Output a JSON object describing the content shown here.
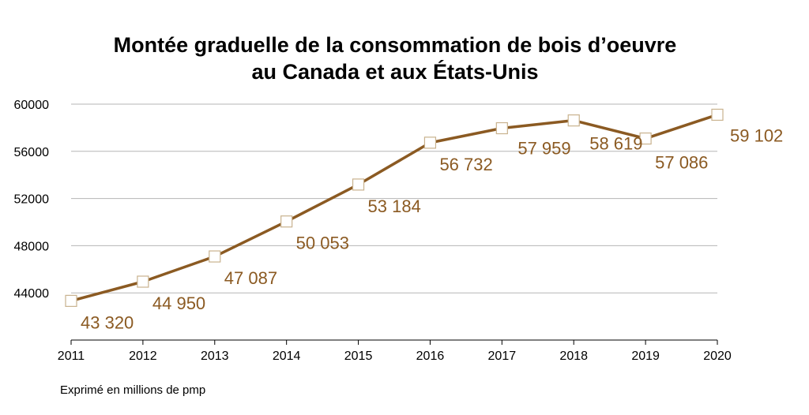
{
  "chart_data": {
    "type": "line",
    "title_line1": "Montée graduelle de la consommation de bois d’oeuvre",
    "title_line2": "au Canada et aux États-Unis",
    "footnote": "Exprimé en millions de pmp",
    "categories": [
      "2011",
      "2012",
      "2013",
      "2014",
      "2015",
      "2016",
      "2017",
      "2018",
      "2019",
      "2020"
    ],
    "values": [
      43320,
      44950,
      47087,
      50053,
      53184,
      56732,
      57959,
      58619,
      57086,
      59102
    ],
    "data_labels": [
      "43 320",
      "44 950",
      "47 087",
      "50 053",
      "53 184",
      "56 732",
      "57 959",
      "58 619",
      "57 086",
      "59 102"
    ],
    "y_ticks": [
      "44000",
      "48000",
      "52000",
      "56000",
      "60000"
    ],
    "y_tick_values": [
      44000,
      48000,
      52000,
      56000,
      60000
    ],
    "ylim": [
      40000,
      60000
    ],
    "grid": true,
    "legend": "none",
    "colors": {
      "line": "#8B5A22",
      "label": "#8B5A22",
      "marker_fill": "#ffffff",
      "marker_stroke": "#C9B28E",
      "grid": "#b5b5b5"
    }
  }
}
